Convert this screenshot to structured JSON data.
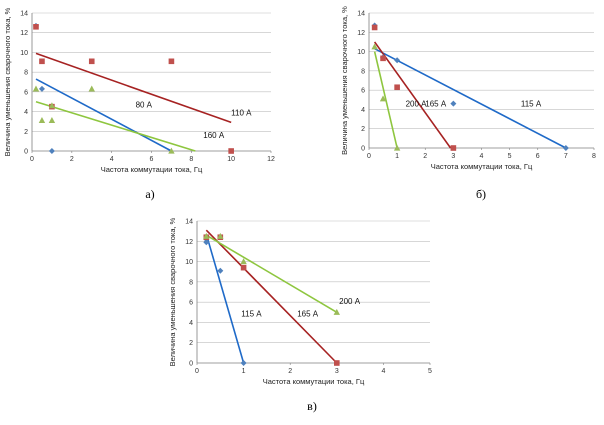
{
  "colors": {
    "blue": "#1f6ac8",
    "red": "#a62222",
    "green": "#8ec63f",
    "red_marker": "#c0504d",
    "green_marker": "#9bbb59",
    "blue_marker": "#4f81bd",
    "grid": "#bfbfbf",
    "axis": "#7f7f7f"
  },
  "chart_data": [
    {
      "type": "scatter",
      "panel_label": "а)",
      "xlabel": "Частота коммутации тока, Гц",
      "ylabel": "Величина уменьшения сварочного тока, %",
      "xlim": [
        0,
        12
      ],
      "ylim": [
        0,
        14
      ],
      "xticks": [
        "0",
        "2",
        "4",
        "6",
        "8",
        "10",
        "12"
      ],
      "yticks": [
        "0",
        "2",
        "4",
        "6",
        "8",
        "10",
        "12",
        "14"
      ],
      "grid": "horizontal",
      "series": [
        {
          "name": "80 А",
          "color": "blue",
          "marker": "diamond",
          "points": [
            [
              0.2,
              12.7
            ],
            [
              0.5,
              6.3
            ],
            [
              1,
              0
            ]
          ],
          "trend": [
            [
              0.2,
              7.3
            ],
            [
              7,
              0
            ]
          ],
          "label_at": [
            5.2,
            4.4
          ]
        },
        {
          "name": "110 А",
          "color": "red",
          "marker": "square",
          "points": [
            [
              0.2,
              12.6
            ],
            [
              0.5,
              9.1
            ],
            [
              1,
              4.5
            ],
            [
              3,
              9.1
            ],
            [
              7,
              9.1
            ],
            [
              10,
              0
            ]
          ],
          "trend": [
            [
              0.2,
              9.9
            ],
            [
              10,
              2.9
            ]
          ],
          "label_at": [
            10,
            3.6
          ]
        },
        {
          "name": "160 А",
          "color": "green",
          "marker": "triangle",
          "points": [
            [
              0.2,
              6.3
            ],
            [
              0.5,
              3.1
            ],
            [
              1,
              4.6
            ],
            [
              1,
              3.1
            ],
            [
              3,
              6.3
            ],
            [
              7,
              0
            ]
          ],
          "trend": [
            [
              0.2,
              5
            ],
            [
              8.2,
              0
            ]
          ],
          "label_at": [
            8.6,
            1.3
          ]
        }
      ]
    },
    {
      "type": "scatter",
      "panel_label": "б)",
      "xlabel": "Частота коммутации тока, Гц",
      "ylabel": "Величина уменьшения сварочного тока, %",
      "xlim": [
        0,
        8
      ],
      "ylim": [
        0,
        14
      ],
      "xticks": [
        "0",
        "1",
        "2",
        "3",
        "4",
        "5",
        "6",
        "7",
        "8"
      ],
      "yticks": [
        "0",
        "2",
        "4",
        "6",
        "8",
        "10",
        "12",
        "14"
      ],
      "grid": "horizontal",
      "series": [
        {
          "name": "115 А",
          "color": "blue",
          "marker": "diamond",
          "points": [
            [
              0.2,
              12.7
            ],
            [
              0.5,
              9.4
            ],
            [
              1,
              9.1
            ],
            [
              3,
              4.6
            ],
            [
              7,
              0
            ]
          ],
          "trend": [
            [
              0.2,
              10.3
            ],
            [
              7,
              0
            ]
          ],
          "label_at": [
            5.4,
            4.3
          ]
        },
        {
          "name": "165 А",
          "color": "red",
          "marker": "square",
          "points": [
            [
              0.2,
              12.5
            ],
            [
              0.5,
              9.3
            ],
            [
              1,
              6.3
            ],
            [
              3,
              0
            ]
          ],
          "trend": [
            [
              0.2,
              11
            ],
            [
              2.9,
              0
            ]
          ],
          "label_at": [
            2,
            4.3
          ]
        },
        {
          "name": "200 А",
          "color": "green",
          "marker": "triangle",
          "points": [
            [
              0.2,
              10.5
            ],
            [
              0.5,
              5.1
            ],
            [
              1,
              0
            ]
          ],
          "trend": [
            [
              0.2,
              10
            ],
            [
              1,
              0
            ]
          ],
          "label_at": [
            1.3,
            4.3
          ]
        }
      ]
    },
    {
      "type": "scatter",
      "panel_label": "в)",
      "xlabel": "Частота коммутации тока, Гц",
      "ylabel": "Величина уменьшения сварочного тока, %",
      "xlim": [
        0,
        5
      ],
      "ylim": [
        0,
        14
      ],
      "xticks": [
        "0",
        "1",
        "2",
        "3",
        "4",
        "5"
      ],
      "yticks": [
        "0",
        "2",
        "4",
        "6",
        "8",
        "10",
        "12",
        "14"
      ],
      "grid": "horizontal",
      "series": [
        {
          "name": "115 А",
          "color": "blue",
          "marker": "diamond",
          "points": [
            [
              0.2,
              12.2
            ],
            [
              0.2,
              11.9
            ],
            [
              0.5,
              9.1
            ],
            [
              1,
              0
            ]
          ],
          "trend": [
            [
              0.2,
              12.7
            ],
            [
              1,
              0
            ]
          ],
          "label_at": [
            0.95,
            4.6
          ]
        },
        {
          "name": "165 А",
          "color": "red",
          "marker": "square",
          "points": [
            [
              0.2,
              12.4
            ],
            [
              0.5,
              12.4
            ],
            [
              1,
              9.4
            ],
            [
              3,
              0
            ]
          ],
          "trend": [
            [
              0.2,
              13.1
            ],
            [
              3,
              0
            ]
          ],
          "label_at": [
            2.15,
            4.6
          ]
        },
        {
          "name": "200 А",
          "color": "green",
          "marker": "triangle",
          "points": [
            [
              0.2,
              12.5
            ],
            [
              0.5,
              12.5
            ],
            [
              1,
              10
            ],
            [
              3,
              5
            ]
          ],
          "trend": [
            [
              0.2,
              12.6
            ],
            [
              3,
              5
            ]
          ],
          "label_at": [
            3.05,
            5.8
          ]
        }
      ]
    }
  ]
}
